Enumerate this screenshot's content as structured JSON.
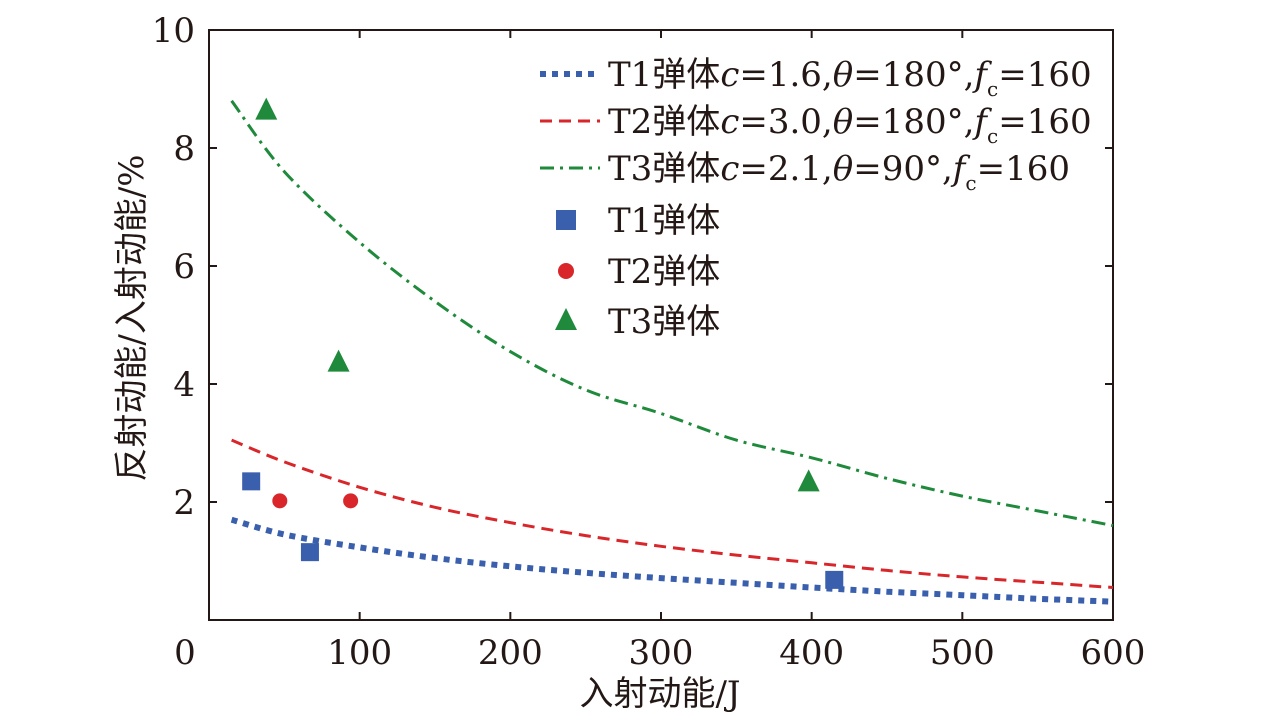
{
  "chart_data": {
    "type": "scatter",
    "xlabel": "入射动能/J",
    "ylabel": "反射动能/入射动能/%",
    "xlim": [
      0,
      600
    ],
    "ylim": [
      0,
      10
    ],
    "xticks": [
      0,
      100,
      200,
      300,
      400,
      500,
      600
    ],
    "yticks": [
      2,
      4,
      6,
      8,
      10
    ],
    "y_zero_label": "0",
    "legend_position": "top-right",
    "grid": false,
    "fit_curves": [
      {
        "name": "T1弹体",
        "style": "dotted",
        "color": "#3a5fad",
        "params": {
          "c": "1.6",
          "theta": "180°",
          "fc": "160"
        },
        "x": [
          15,
          50,
          100,
          150,
          200,
          250,
          300,
          350,
          400,
          450,
          500,
          550,
          600
        ],
        "y": [
          1.7,
          1.45,
          1.23,
          1.05,
          0.91,
          0.8,
          0.71,
          0.63,
          0.55,
          0.48,
          0.42,
          0.36,
          0.31
        ]
      },
      {
        "name": "T2弹体",
        "style": "dashed",
        "color": "#d9262b",
        "params": {
          "c": "3.0",
          "theta": "180°",
          "fc": "160"
        },
        "x": [
          15,
          50,
          100,
          150,
          200,
          250,
          300,
          350,
          400,
          450,
          500,
          550,
          600
        ],
        "y": [
          3.05,
          2.68,
          2.25,
          1.91,
          1.65,
          1.43,
          1.25,
          1.1,
          0.97,
          0.84,
          0.73,
          0.64,
          0.55
        ]
      },
      {
        "name": "T3弹体",
        "style": "dash-dot",
        "color": "#1f8a3b",
        "params": {
          "c": "2.1",
          "theta": "90°",
          "fc": "160"
        },
        "x": [
          15,
          50,
          100,
          150,
          200,
          250,
          300,
          350,
          400,
          450,
          500,
          550,
          600
        ],
        "y": [
          8.8,
          7.6,
          6.4,
          5.4,
          4.55,
          3.9,
          3.5,
          3.05,
          2.75,
          2.4,
          2.1,
          1.85,
          1.6
        ]
      }
    ],
    "series": [
      {
        "name": "T1弹体",
        "marker": "square",
        "color": "#3a5fad",
        "x": [
          28,
          67,
          415
        ],
        "y": [
          2.35,
          1.15,
          0.68
        ]
      },
      {
        "name": "T2弹体",
        "marker": "circle",
        "color": "#d9262b",
        "x": [
          47,
          94
        ],
        "y": [
          2.02,
          2.02
        ]
      },
      {
        "name": "T3弹体",
        "marker": "triangle",
        "color": "#1f8a3b",
        "x": [
          38,
          86,
          398
        ],
        "y": [
          8.65,
          4.38,
          2.35
        ]
      }
    ]
  },
  "legend": {
    "curve_prefix": [
      "T1弹体",
      "T2弹体",
      "T3弹体"
    ],
    "c_symbol": "c",
    "c_values": [
      "=1.6,",
      "=3.0,",
      "=2.1,"
    ],
    "theta_symbol": "θ",
    "theta_values": [
      "=180°,",
      "=180°,",
      "=90°,"
    ],
    "f_symbol": "f",
    "f_sub": "c",
    "f_values": [
      "=160",
      "=160",
      "=160"
    ],
    "marker_labels": [
      "T1弹体",
      "T2弹体",
      "T3弹体"
    ]
  }
}
